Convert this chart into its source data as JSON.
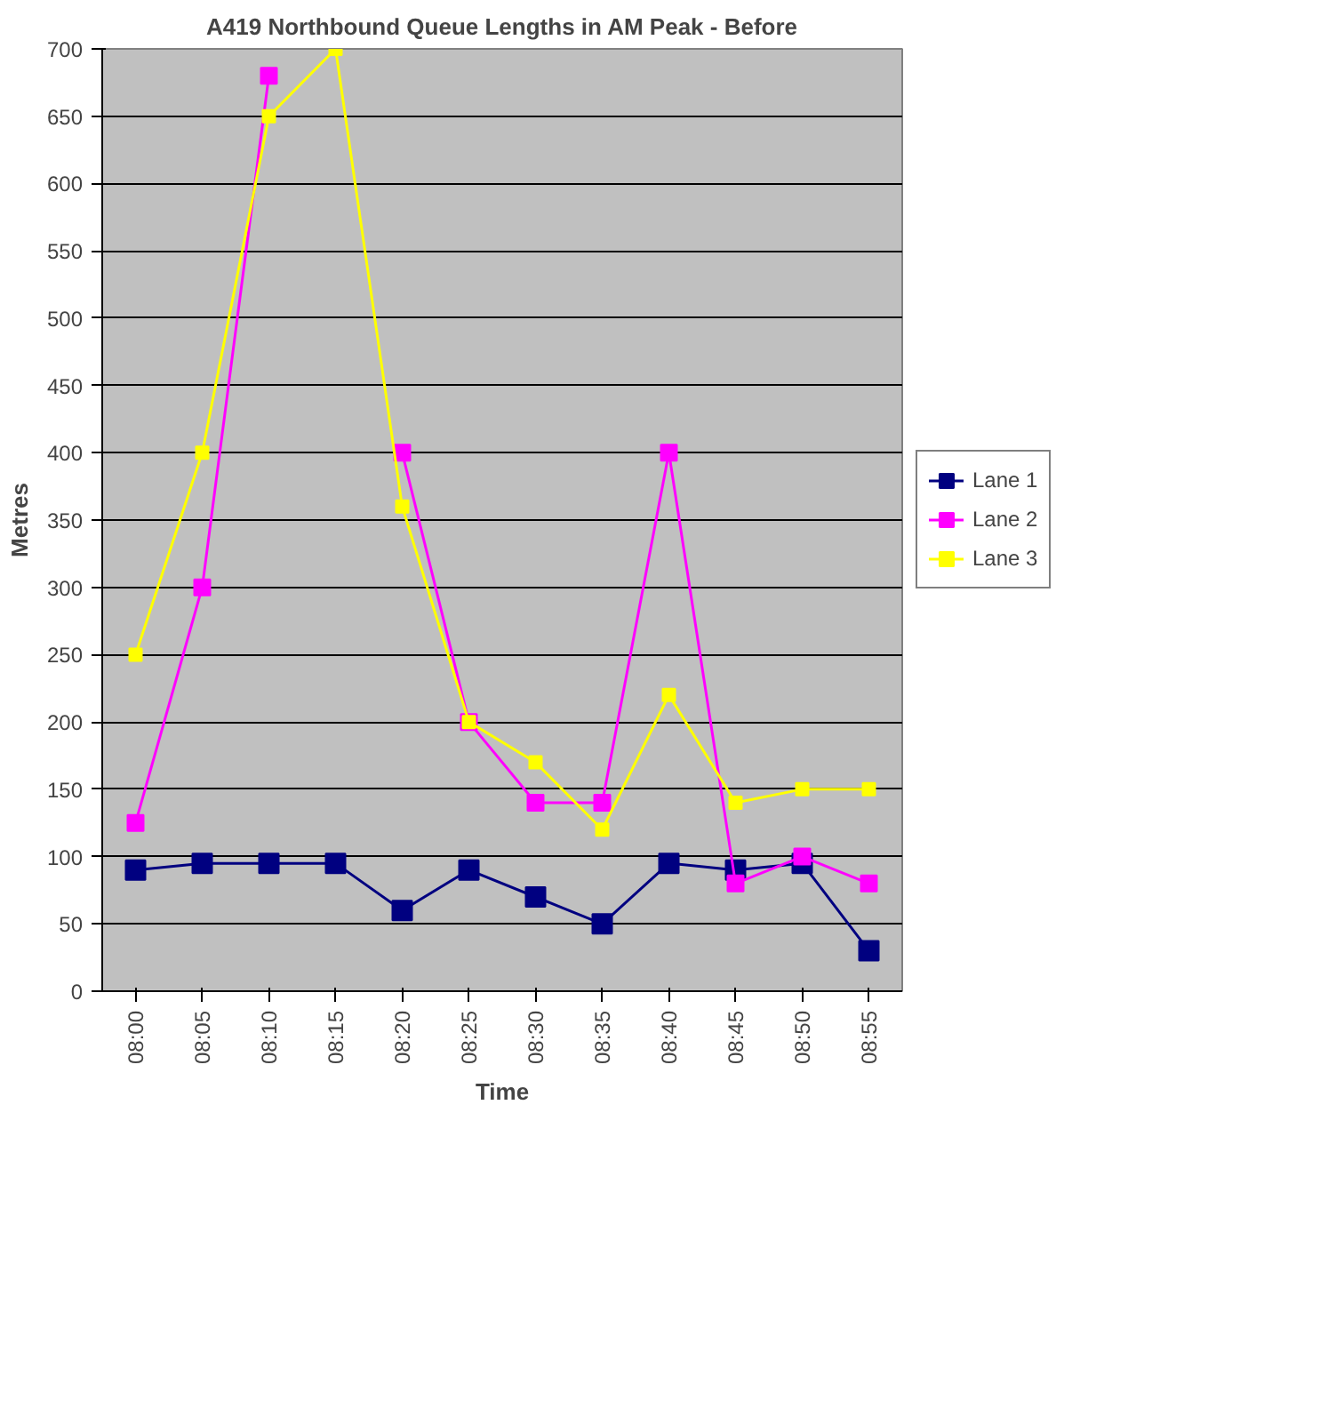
{
  "chart_data": {
    "type": "line",
    "title": "A419 Northbound Queue Lengths in AM Peak - Before",
    "xlabel": "Time",
    "ylabel": "Metres",
    "categories": [
      "08:00",
      "08:05",
      "08:10",
      "08:15",
      "08:20",
      "08:25",
      "08:30",
      "08:35",
      "08:40",
      "08:45",
      "08:50",
      "08:55"
    ],
    "series": [
      {
        "name": "Lane 1",
        "color": "#000080",
        "values": [
          90,
          95,
          95,
          95,
          60,
          90,
          70,
          50,
          95,
          90,
          95,
          30
        ]
      },
      {
        "name": "Lane 2",
        "color": "#ff00ff",
        "values": [
          125,
          300,
          680,
          null,
          400,
          200,
          140,
          140,
          400,
          80,
          100,
          80
        ]
      },
      {
        "name": "Lane 3",
        "color": "#ffff00",
        "values": [
          250,
          400,
          650,
          700,
          360,
          200,
          170,
          120,
          220,
          140,
          150,
          150
        ]
      }
    ],
    "ylim": [
      0,
      700
    ],
    "yticks": [
      0,
      50,
      100,
      150,
      200,
      250,
      300,
      350,
      400,
      450,
      500,
      550,
      600,
      650,
      700
    ],
    "grid": "y",
    "legend": "right",
    "marker": "square",
    "line_style": "solid"
  }
}
